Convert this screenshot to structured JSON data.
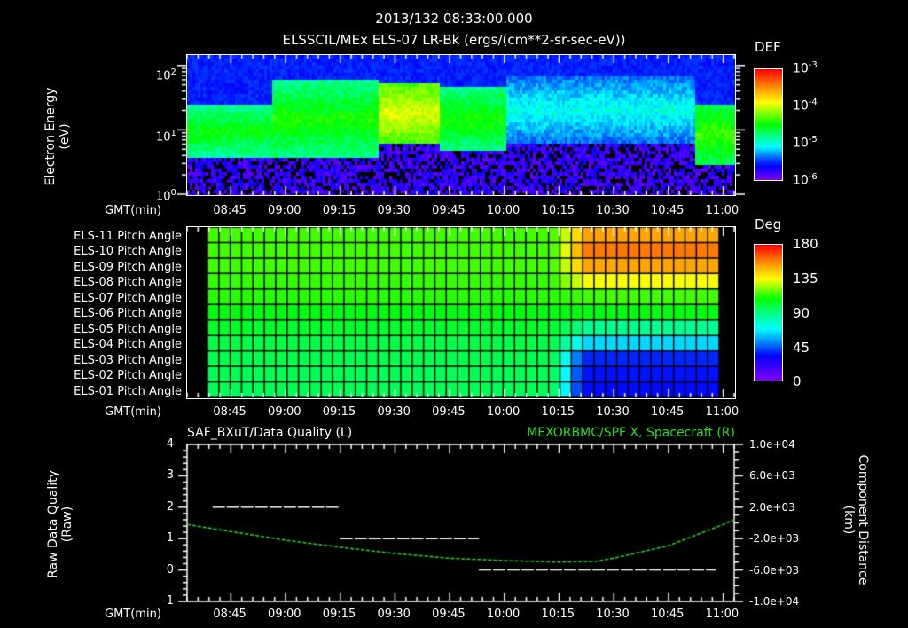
{
  "header": {
    "timestamp": "2013/132 08:33:00.000",
    "title": "ELSSCIL/MEx ELS-07 LR-Bk  (ergs/(cm**2-sr-sec-eV))"
  },
  "colors": {
    "background": "#000000",
    "axes": "#ffffff",
    "orbit_trace": "#22dd22",
    "quality_trace": "#ffffff"
  },
  "time_axis": {
    "label": "GMT(min)",
    "ticks": [
      "08:45",
      "09:00",
      "09:15",
      "09:30",
      "09:45",
      "10:00",
      "10:15",
      "10:30",
      "10:45",
      "11:00"
    ]
  },
  "panel1": {
    "ylabel_line1": "Electron Energy",
    "ylabel_line2": "(eV)",
    "yticks": [
      {
        "base": "10",
        "exp": "2"
      },
      {
        "base": "10",
        "exp": "1"
      },
      {
        "base": "10",
        "exp": "0"
      }
    ],
    "colorbar": {
      "label": "DEF",
      "ticks": [
        {
          "base": "10",
          "exp": "-3"
        },
        {
          "base": "10",
          "exp": "-4"
        },
        {
          "base": "10",
          "exp": "-5"
        },
        {
          "base": "10",
          "exp": "-6"
        }
      ]
    }
  },
  "panel2": {
    "rows": [
      "ELS-11 Pitch Angle",
      "ELS-10 Pitch Angle",
      "ELS-09 Pitch Angle",
      "ELS-08 Pitch Angle",
      "ELS-07 Pitch Angle",
      "ELS-06 Pitch Angle",
      "ELS-05 Pitch Angle",
      "ELS-04 Pitch Angle",
      "ELS-03 Pitch Angle",
      "ELS-02 Pitch Angle",
      "ELS-01 Pitch Angle"
    ],
    "colorbar": {
      "label": "Deg",
      "ticks": [
        "180",
        "135",
        "90",
        "45",
        "0"
      ]
    }
  },
  "panel3": {
    "left_title": "SAF_BXuT/Data Quality (L)",
    "right_title": "MEXORBMC/SPF X, Spacecraft (R)",
    "ylabel_left_line1": "Raw Data Quality",
    "ylabel_left_line2": "(Raw)",
    "ylabel_right_line1": "Component Distance",
    "ylabel_right_line2": "(km)",
    "yticks_left": [
      "4",
      "3",
      "2",
      "1",
      "0",
      "-1"
    ],
    "yticks_right": [
      "1.0e+04",
      "6.0e+03",
      "2.0e+03",
      "-2.0e+03",
      "-6.0e+03",
      "-1.0e+04"
    ]
  },
  "chart_data": [
    {
      "type": "heatmap",
      "title": "ELSSCIL/MEx ELS-07 LR-Bk (ergs/(cm**2-sr-sec-eV))",
      "subtitle": "2013/132 08:33:00.000",
      "xlabel": "GMT(min)",
      "ylabel": "Electron Energy (eV)",
      "yscale": "log",
      "ylim": [
        1,
        150
      ],
      "xlim": [
        "08:33",
        "11:03"
      ],
      "colorbar": {
        "label": "DEF",
        "scale": "log",
        "range": [
          1e-06,
          0.001
        ]
      },
      "features": [
        {
          "time": "08:33-08:56",
          "band_eV": [
            4,
            30
          ],
          "level": "~3e-5"
        },
        {
          "time": "08:56-09:25",
          "band_eV": [
            4,
            80
          ],
          "level": "~5e-5"
        },
        {
          "time": "09:25-09:42",
          "band_eV": [
            8,
            60
          ],
          "level": "~2e-4 (peak ~4e-4 near 30 eV)"
        },
        {
          "time": "09:42-10:00",
          "band_eV": [
            5,
            50
          ],
          "level": "~8e-5"
        },
        {
          "time": "10:00-10:50",
          "band_eV": [
            5,
            100
          ],
          "level": "~1e-5 (patchy)"
        },
        {
          "time": "10:52-11:03",
          "band_eV": [
            3,
            30
          ],
          "level": "~8e-5"
        }
      ]
    },
    {
      "type": "heatmap",
      "title": "ELS pitch angle",
      "xlabel": "GMT(min)",
      "rows": [
        "ELS-11",
        "ELS-10",
        "ELS-09",
        "ELS-08",
        "ELS-07",
        "ELS-06",
        "ELS-05",
        "ELS-04",
        "ELS-03",
        "ELS-02",
        "ELS-01"
      ],
      "colorbar": {
        "label": "Deg",
        "range": [
          0,
          180
        ]
      },
      "before_10_15_deg": [
        100,
        100,
        100,
        98,
        96,
        88,
        84,
        80,
        79,
        78,
        78
      ],
      "after_10_22_deg": [
        150,
        160,
        150,
        128,
        100,
        88,
        70,
        50,
        25,
        20,
        18
      ]
    },
    {
      "type": "line",
      "title_left": "SAF_BXuT/Data Quality (L)",
      "title_right": "MEXORBMC/SPF X, Spacecraft (R)",
      "xlabel": "GMT(min)",
      "ylabel_left": "Raw Data Quality (Raw)",
      "ylabel_right": "Component Distance (km)",
      "ylim_left": [
        -1,
        4
      ],
      "ylim_right": [
        -10000,
        10000
      ],
      "series": [
        {
          "name": "Data Quality",
          "axis": "left",
          "segments": [
            {
              "from": "08:40",
              "to": "09:15",
              "value": 2
            },
            {
              "from": "09:15",
              "to": "09:53",
              "value": 1
            },
            {
              "from": "09:53",
              "to": "10:58",
              "value": 0
            }
          ]
        },
        {
          "name": "SPF X (km)",
          "axis": "right",
          "x": [
            "08:33",
            "08:45",
            "09:00",
            "09:15",
            "09:30",
            "09:45",
            "10:00",
            "10:15",
            "10:25",
            "10:30",
            "10:45",
            "11:00",
            "11:03"
          ],
          "values": [
            -200,
            -1100,
            -2200,
            -3100,
            -3900,
            -4500,
            -4800,
            -5000,
            -4900,
            -4500,
            -2900,
            -200,
            400
          ]
        }
      ]
    }
  ]
}
